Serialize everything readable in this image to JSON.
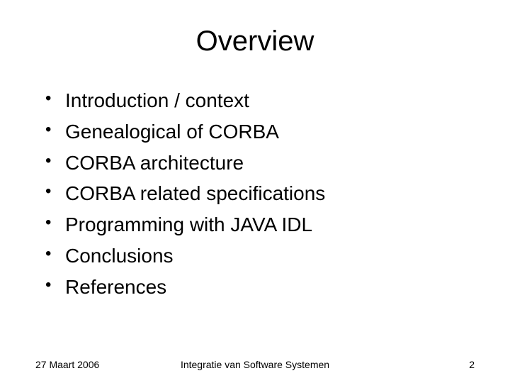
{
  "slide": {
    "title": "Overview",
    "bullets": [
      "Introduction / context",
      "Genealogical of CORBA",
      "CORBA architecture",
      "CORBA related specifications",
      "Programming with JAVA IDL",
      "Conclusions",
      "References"
    ],
    "footer": {
      "date": "27 Maart 2006",
      "center": "Integratie van Software Systemen",
      "page": "2"
    }
  },
  "style": {
    "background_color": "#ffffff",
    "text_color": "#000000",
    "title_fontsize": 40,
    "bullet_fontsize": 28,
    "footer_fontsize": 14,
    "font_family": "Arial"
  }
}
